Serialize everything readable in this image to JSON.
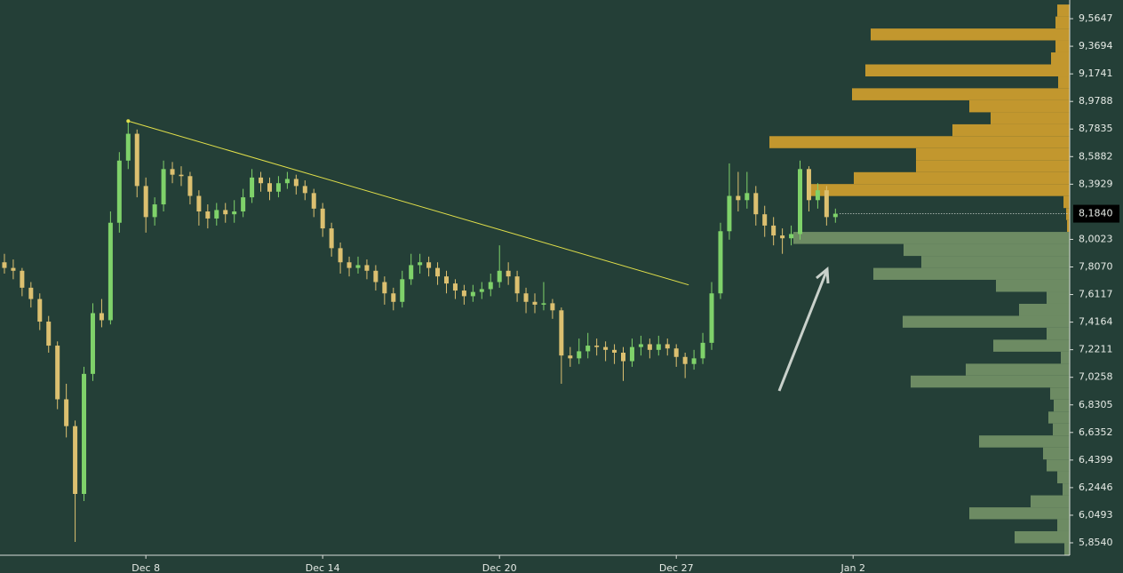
{
  "chart_data": {
    "type": "candlestick",
    "xlim": [
      -0.5,
      120.5
    ],
    "xticks": [
      {
        "value": 16,
        "label": "Dec 8"
      },
      {
        "value": 36,
        "label": "Dec 14"
      },
      {
        "value": 56,
        "label": "Dec 20"
      },
      {
        "value": 76,
        "label": "Dec 27"
      },
      {
        "value": 96,
        "label": "Jan 2"
      }
    ],
    "ylim": [
      5.766,
      9.697
    ],
    "yticks": [
      {
        "value": 9.5647,
        "label": "9,5647"
      },
      {
        "value": 9.3694,
        "label": "9,3694"
      },
      {
        "value": 9.1741,
        "label": "9,1741"
      },
      {
        "value": 8.9788,
        "label": "8,9788"
      },
      {
        "value": 8.7835,
        "label": "8,7835"
      },
      {
        "value": 8.5882,
        "label": "8,5882"
      },
      {
        "value": 8.3929,
        "label": "8,3929"
      },
      {
        "value": 8.0023,
        "label": "8,0023"
      },
      {
        "value": 7.807,
        "label": "7,8070"
      },
      {
        "value": 7.6117,
        "label": "7,6117"
      },
      {
        "value": 7.4164,
        "label": "7,4164"
      },
      {
        "value": 7.2211,
        "label": "7,2211"
      },
      {
        "value": 7.0258,
        "label": "7,0258"
      },
      {
        "value": 6.8305,
        "label": "6,8305"
      },
      {
        "value": 6.6352,
        "label": "6,6352"
      },
      {
        "value": 6.4399,
        "label": "6,4399"
      },
      {
        "value": 6.2446,
        "label": "6,2446"
      },
      {
        "value": 6.0493,
        "label": "6,0493"
      },
      {
        "value": 5.854,
        "label": "5,8540"
      }
    ],
    "up_color": "#7fd26a",
    "down_color": "#dcc070",
    "ohlc": [
      [
        7.84,
        7.9,
        7.76,
        7.8
      ],
      [
        7.8,
        7.86,
        7.72,
        7.78
      ],
      [
        7.78,
        7.8,
        7.6,
        7.66
      ],
      [
        7.66,
        7.7,
        7.52,
        7.58
      ],
      [
        7.58,
        7.62,
        7.36,
        7.42
      ],
      [
        7.42,
        7.46,
        7.2,
        7.25
      ],
      [
        7.25,
        7.28,
        6.8,
        6.87
      ],
      [
        6.87,
        6.98,
        6.6,
        6.68
      ],
      [
        6.68,
        6.72,
        5.86,
        6.2
      ],
      [
        6.2,
        7.1,
        6.15,
        7.05
      ],
      [
        7.05,
        7.55,
        7.0,
        7.48
      ],
      [
        7.48,
        7.58,
        7.38,
        7.43
      ],
      [
        7.43,
        8.2,
        7.4,
        8.12
      ],
      [
        8.12,
        8.62,
        8.05,
        8.56
      ],
      [
        8.56,
        8.84,
        8.5,
        8.75
      ],
      [
        8.75,
        8.78,
        8.3,
        8.38
      ],
      [
        8.38,
        8.44,
        8.05,
        8.16
      ],
      [
        8.16,
        8.3,
        8.1,
        8.25
      ],
      [
        8.25,
        8.56,
        8.2,
        8.5
      ],
      [
        8.5,
        8.55,
        8.4,
        8.46
      ],
      [
        8.46,
        8.52,
        8.38,
        8.45
      ],
      [
        8.45,
        8.48,
        8.25,
        8.31
      ],
      [
        8.31,
        8.35,
        8.1,
        8.2
      ],
      [
        8.2,
        8.25,
        8.08,
        8.15
      ],
      [
        8.15,
        8.26,
        8.1,
        8.21
      ],
      [
        8.21,
        8.26,
        8.12,
        8.18
      ],
      [
        8.18,
        8.28,
        8.12,
        8.2
      ],
      [
        8.2,
        8.36,
        8.16,
        8.3
      ],
      [
        8.3,
        8.5,
        8.26,
        8.44
      ],
      [
        8.44,
        8.48,
        8.34,
        8.4
      ],
      [
        8.4,
        8.44,
        8.28,
        8.34
      ],
      [
        8.34,
        8.45,
        8.3,
        8.4
      ],
      [
        8.4,
        8.48,
        8.36,
        8.43
      ],
      [
        8.43,
        8.46,
        8.32,
        8.38
      ],
      [
        8.38,
        8.42,
        8.28,
        8.33
      ],
      [
        8.33,
        8.36,
        8.16,
        8.22
      ],
      [
        8.22,
        8.26,
        8.02,
        8.08
      ],
      [
        8.08,
        8.12,
        7.88,
        7.94
      ],
      [
        7.94,
        7.98,
        7.76,
        7.84
      ],
      [
        7.84,
        7.88,
        7.74,
        7.8
      ],
      [
        7.8,
        7.88,
        7.76,
        7.82
      ],
      [
        7.82,
        7.86,
        7.72,
        7.78
      ],
      [
        7.78,
        7.82,
        7.64,
        7.7
      ],
      [
        7.7,
        7.74,
        7.54,
        7.62
      ],
      [
        7.62,
        7.66,
        7.5,
        7.56
      ],
      [
        7.56,
        7.78,
        7.52,
        7.72
      ],
      [
        7.72,
        7.9,
        7.68,
        7.82
      ],
      [
        7.82,
        7.9,
        7.76,
        7.84
      ],
      [
        7.84,
        7.88,
        7.74,
        7.8
      ],
      [
        7.8,
        7.84,
        7.68,
        7.74
      ],
      [
        7.74,
        7.78,
        7.62,
        7.69
      ],
      [
        7.69,
        7.72,
        7.58,
        7.64
      ],
      [
        7.64,
        7.68,
        7.54,
        7.6
      ],
      [
        7.6,
        7.68,
        7.56,
        7.63
      ],
      [
        7.63,
        7.7,
        7.58,
        7.65
      ],
      [
        7.65,
        7.76,
        7.6,
        7.7
      ],
      [
        7.7,
        7.96,
        7.66,
        7.78
      ],
      [
        7.78,
        7.84,
        7.68,
        7.74
      ],
      [
        7.74,
        7.78,
        7.56,
        7.62
      ],
      [
        7.62,
        7.66,
        7.48,
        7.56
      ],
      [
        7.56,
        7.62,
        7.48,
        7.54
      ],
      [
        7.54,
        7.7,
        7.5,
        7.55
      ],
      [
        7.55,
        7.58,
        7.44,
        7.5
      ],
      [
        7.5,
        7.52,
        6.98,
        7.18
      ],
      [
        7.18,
        7.24,
        7.1,
        7.16
      ],
      [
        7.16,
        7.3,
        7.12,
        7.21
      ],
      [
        7.21,
        7.34,
        7.16,
        7.25
      ],
      [
        7.25,
        7.3,
        7.18,
        7.24
      ],
      [
        7.24,
        7.28,
        7.14,
        7.22
      ],
      [
        7.22,
        7.26,
        7.12,
        7.2
      ],
      [
        7.2,
        7.24,
        7.0,
        7.14
      ],
      [
        7.14,
        7.3,
        7.1,
        7.24
      ],
      [
        7.24,
        7.32,
        7.18,
        7.26
      ],
      [
        7.26,
        7.3,
        7.16,
        7.22
      ],
      [
        7.22,
        7.32,
        7.18,
        7.26
      ],
      [
        7.26,
        7.3,
        7.18,
        7.23
      ],
      [
        7.23,
        7.26,
        7.1,
        7.17
      ],
      [
        7.17,
        7.2,
        7.02,
        7.12
      ],
      [
        7.12,
        7.22,
        7.08,
        7.16
      ],
      [
        7.16,
        7.34,
        7.12,
        7.27
      ],
      [
        7.27,
        7.7,
        7.22,
        7.62
      ],
      [
        7.62,
        8.12,
        7.58,
        8.06
      ],
      [
        8.06,
        8.54,
        8.0,
        8.31
      ],
      [
        8.31,
        8.48,
        8.2,
        8.28
      ],
      [
        8.28,
        8.48,
        8.22,
        8.33
      ],
      [
        8.33,
        8.38,
        8.1,
        8.18
      ],
      [
        8.18,
        8.24,
        8.02,
        8.1
      ],
      [
        8.1,
        8.16,
        7.96,
        8.03
      ],
      [
        8.03,
        8.08,
        7.9,
        8.01
      ],
      [
        8.01,
        8.1,
        7.96,
        8.04
      ],
      [
        8.04,
        8.56,
        8.0,
        8.5
      ],
      [
        8.5,
        8.52,
        8.2,
        8.28
      ],
      [
        8.28,
        8.4,
        8.22,
        8.35
      ],
      [
        8.35,
        8.38,
        8.1,
        8.16
      ],
      [
        8.16,
        8.22,
        8.12,
        8.184
      ]
    ],
    "last_price": {
      "value": 8.184,
      "label": "8,1840"
    },
    "trendline": {
      "x": [
        14,
        77.4
      ],
      "y": [
        8.84,
        7.68
      ],
      "color": "#e2e04a"
    },
    "profile": {
      "bins": [
        9.665,
        9.58,
        9.495,
        9.411,
        9.326,
        9.241,
        9.156,
        9.072,
        8.987,
        8.902,
        8.817,
        8.733,
        8.648,
        8.563,
        8.478,
        8.394,
        8.309,
        8.224,
        8.139,
        8.055,
        7.97,
        7.885,
        7.8,
        7.716,
        7.631,
        7.546,
        7.461,
        7.377,
        7.292,
        7.207,
        7.122,
        7.038,
        6.953,
        6.868,
        6.783,
        6.699,
        6.614,
        6.529,
        6.444,
        6.36,
        6.275,
        6.19,
        6.105,
        6.021,
        5.936,
        5.851,
        5.766
      ],
      "volumes": [
        14,
        16,
        224,
        16,
        21,
        230,
        13,
        245,
        113,
        89,
        132,
        338,
        173,
        173,
        243,
        292,
        7,
        4,
        3,
        311,
        187,
        167,
        221,
        83,
        26,
        57,
        188,
        26,
        86,
        10,
        117,
        179,
        22,
        18,
        24,
        19,
        102,
        30,
        26,
        14,
        8,
        44,
        113,
        14,
        62,
        6
      ],
      "colors": [
        "#c2972e",
        "#c2972e",
        "#c2972e",
        "#c2972e",
        "#c2972e",
        "#c2972e",
        "#c2972e",
        "#c2972e",
        "#c2972e",
        "#c2972e",
        "#c2972e",
        "#c2972e",
        "#c2972e",
        "#c2972e",
        "#c2972e",
        "#c2972e",
        "#c2972e",
        "#c2972e",
        "#c2972e",
        "#6d8b63",
        "#6d8b63",
        "#6d8b63",
        "#6d8b63",
        "#6d8b63",
        "#6d8b63",
        "#6d8b63",
        "#6d8b63",
        "#6d8b63",
        "#6d8b63",
        "#6d8b63",
        "#6d8b63",
        "#6d8b63",
        "#6d8b63",
        "#6d8b63",
        "#6d8b63",
        "#6d8b63",
        "#6d8b63",
        "#6d8b63",
        "#6d8b63",
        "#6d8b63",
        "#6d8b63",
        "#6d8b63",
        "#6d8b63",
        "#6d8b63",
        "#6d8b63",
        "#6d8b63"
      ]
    }
  }
}
